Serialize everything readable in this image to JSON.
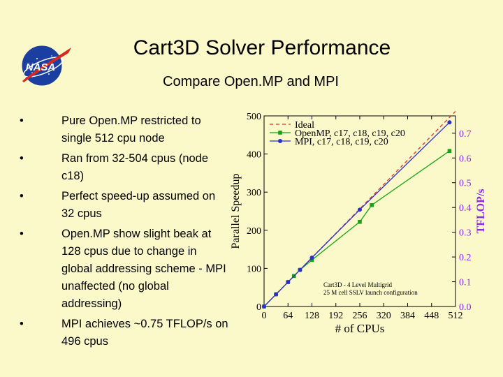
{
  "slide": {
    "title": "Cart3D Solver Performance",
    "subtitle": "Compare Open.MP and MPI",
    "logo_text": "NASA",
    "bullet_symbol": "•",
    "bullets": [
      "Pure Open.MP restricted to single 512 cpu node",
      "Ran from 32-504 cpus (node c18)",
      "Perfect speed-up assumed on 32 cpus",
      "Open.MP show slight beak at 128 cpus due to change in global addressing scheme - MPI unaffected (no global addressing)",
      "MPI achieves ~0.75 TFLOP/s on 496 cpus"
    ]
  },
  "colors": {
    "background": "#fbf8c9",
    "ideal": "#e0302a",
    "openmp": "#17a317",
    "mpi": "#2d2fc9",
    "right_axis": "#8a2be2"
  },
  "chart_data": {
    "type": "line",
    "xlabel": "# of CPUs",
    "ylabel": "Parallel Speedup",
    "y2label": "TFLOP/s",
    "xlim": [
      0,
      512
    ],
    "ylim": [
      0,
      500
    ],
    "y2lim": [
      0,
      0.77
    ],
    "xticks": [
      0,
      64,
      128,
      192,
      256,
      320,
      384,
      448,
      512
    ],
    "yticks": [
      0,
      100,
      200,
      300,
      400,
      500
    ],
    "y2ticks": [
      "0.0",
      "0.1",
      "0.2",
      "0.3",
      "0.4",
      "0.5",
      "0.6",
      "0.7"
    ],
    "legend_position": "top-left",
    "annotation_lines": [
      "Cart3D - 4 Level Multigrid",
      "25 M cell SSLV launch configuration"
    ],
    "series": [
      {
        "name": "Ideal",
        "style": "dashed",
        "color": "#e0302a",
        "x": [
          0,
          512
        ],
        "y": [
          0,
          512
        ]
      },
      {
        "name": "OpenMP, c17, c18, c19, c20",
        "style": "square",
        "color": "#17a317",
        "x": [
          0,
          32,
          64,
          80,
          96,
          128,
          256,
          288,
          496
        ],
        "y": [
          0,
          32,
          64,
          80,
          96,
          122,
          222,
          266,
          408
        ]
      },
      {
        "name": "MPI, c17, c18, c19, c20",
        "style": "circle",
        "color": "#2d2fc9",
        "x": [
          0,
          32,
          64,
          96,
          128,
          256,
          496
        ],
        "y": [
          0,
          32,
          64,
          96,
          128,
          254,
          483
        ]
      }
    ]
  }
}
